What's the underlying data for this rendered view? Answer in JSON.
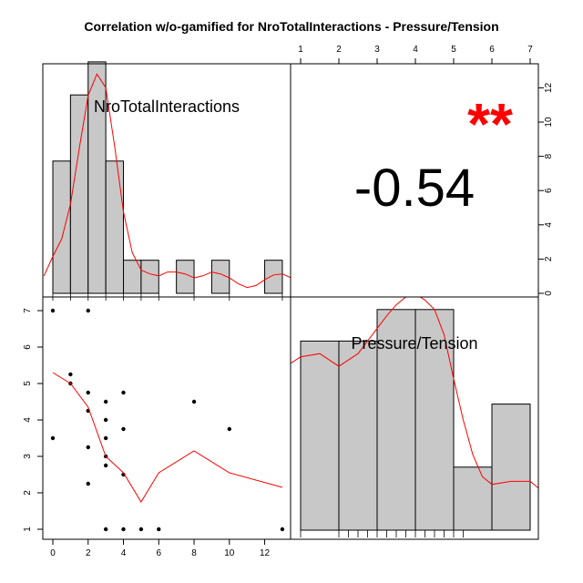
{
  "title": "Correlation w/o-gamified for NroTotalInteractions - Pressure/Tension",
  "accent": "#ff0000",
  "chart_data": [
    {
      "type": "bar",
      "panel": "histogram",
      "label": "NroTotalInteractions",
      "bin_edges": [
        0,
        1,
        2,
        3,
        4,
        5,
        6,
        7,
        8,
        9,
        10,
        11,
        12,
        13
      ],
      "counts": [
        4,
        6,
        7,
        4,
        1,
        1,
        0,
        1,
        0,
        1,
        0,
        0,
        1
      ],
      "density_curve": {
        "x": [
          -0.5,
          0,
          0.5,
          1,
          1.5,
          2,
          2.5,
          3,
          3.5,
          4,
          4.5,
          5,
          5.5,
          6,
          6.5,
          7,
          7.5,
          8,
          8.5,
          9,
          9.5,
          10,
          10.5,
          11,
          11.5,
          12,
          12.5,
          13,
          13.5
        ],
        "y": [
          0.9,
          1.9,
          2.8,
          4.6,
          7.5,
          10.2,
          11.3,
          10.6,
          7.6,
          4.2,
          2.1,
          1.2,
          1.0,
          0.9,
          1.1,
          1.1,
          1.0,
          0.8,
          0.9,
          1.1,
          1.0,
          0.8,
          0.5,
          0.3,
          0.4,
          0.7,
          0.95,
          1.0,
          0.8
        ]
      },
      "rug": [
        0,
        1,
        2,
        3,
        4,
        5,
        6,
        8,
        10,
        13
      ]
    },
    {
      "type": "table",
      "panel": "correlation",
      "value": "-0.54",
      "significance": "**",
      "right_axis_ticks": [
        "0",
        "2",
        "4",
        "6",
        "8",
        "10",
        "12"
      ],
      "top_axis_ticks": [
        "1",
        "2",
        "3",
        "4",
        "5",
        "6",
        "7"
      ]
    },
    {
      "type": "scatter",
      "panel": "scatter",
      "x_ticks": [
        "0",
        "2",
        "4",
        "6",
        "8",
        "10",
        "12"
      ],
      "y_ticks": [
        "1",
        "2",
        "3",
        "4",
        "5",
        "6",
        "7"
      ],
      "xlim": [
        -0.5,
        13.5
      ],
      "ylim": [
        0.8,
        7.2
      ],
      "points": [
        [
          0,
          7
        ],
        [
          2,
          7
        ],
        [
          1,
          5.25
        ],
        [
          1,
          5
        ],
        [
          2,
          4.75
        ],
        [
          4,
          4.75
        ],
        [
          3,
          4.5
        ],
        [
          8,
          4.5
        ],
        [
          2,
          4.25
        ],
        [
          3,
          4
        ],
        [
          4,
          3.75
        ],
        [
          10,
          3.75
        ],
        [
          0,
          3.5
        ],
        [
          3,
          3.5
        ],
        [
          2,
          3.25
        ],
        [
          3,
          3
        ],
        [
          3,
          2.75
        ],
        [
          4,
          2.5
        ],
        [
          2,
          2.25
        ],
        [
          3,
          1
        ],
        [
          4,
          1
        ],
        [
          5,
          1
        ],
        [
          6,
          1
        ],
        [
          13,
          1
        ]
      ],
      "smooth": {
        "x": [
          0,
          1,
          2,
          3,
          4,
          5,
          6,
          8,
          10,
          13
        ],
        "y": [
          5.3,
          5.0,
          4.35,
          3.0,
          2.55,
          1.75,
          2.55,
          3.15,
          2.55,
          2.15
        ]
      }
    },
    {
      "type": "bar",
      "panel": "histogram",
      "label": "Pressure/Tension",
      "bin_edges": [
        1,
        2,
        3,
        4,
        5,
        6,
        7
      ],
      "counts": [
        6,
        6,
        7,
        7,
        2,
        4
      ],
      "density_curve": {
        "x": [
          0.75,
          1,
          1.5,
          2,
          2.5,
          3,
          3.25,
          3.5,
          3.75,
          4,
          4.25,
          4.5,
          4.75,
          5,
          5.25,
          5.5,
          5.75,
          6,
          6.5,
          7,
          7.25
        ],
        "y": [
          5.3,
          5.5,
          5.6,
          5.2,
          5.6,
          6.4,
          6.8,
          7.15,
          7.4,
          7.5,
          7.3,
          7.0,
          6.2,
          4.8,
          3.5,
          2.4,
          1.7,
          1.45,
          1.55,
          1.55,
          1.3
        ]
      },
      "rug": [
        1,
        2,
        2.25,
        2.5,
        2.75,
        3,
        3.25,
        3.5,
        3.75,
        4,
        4.25,
        4.5,
        4.75,
        5,
        5.25
      ]
    }
  ]
}
